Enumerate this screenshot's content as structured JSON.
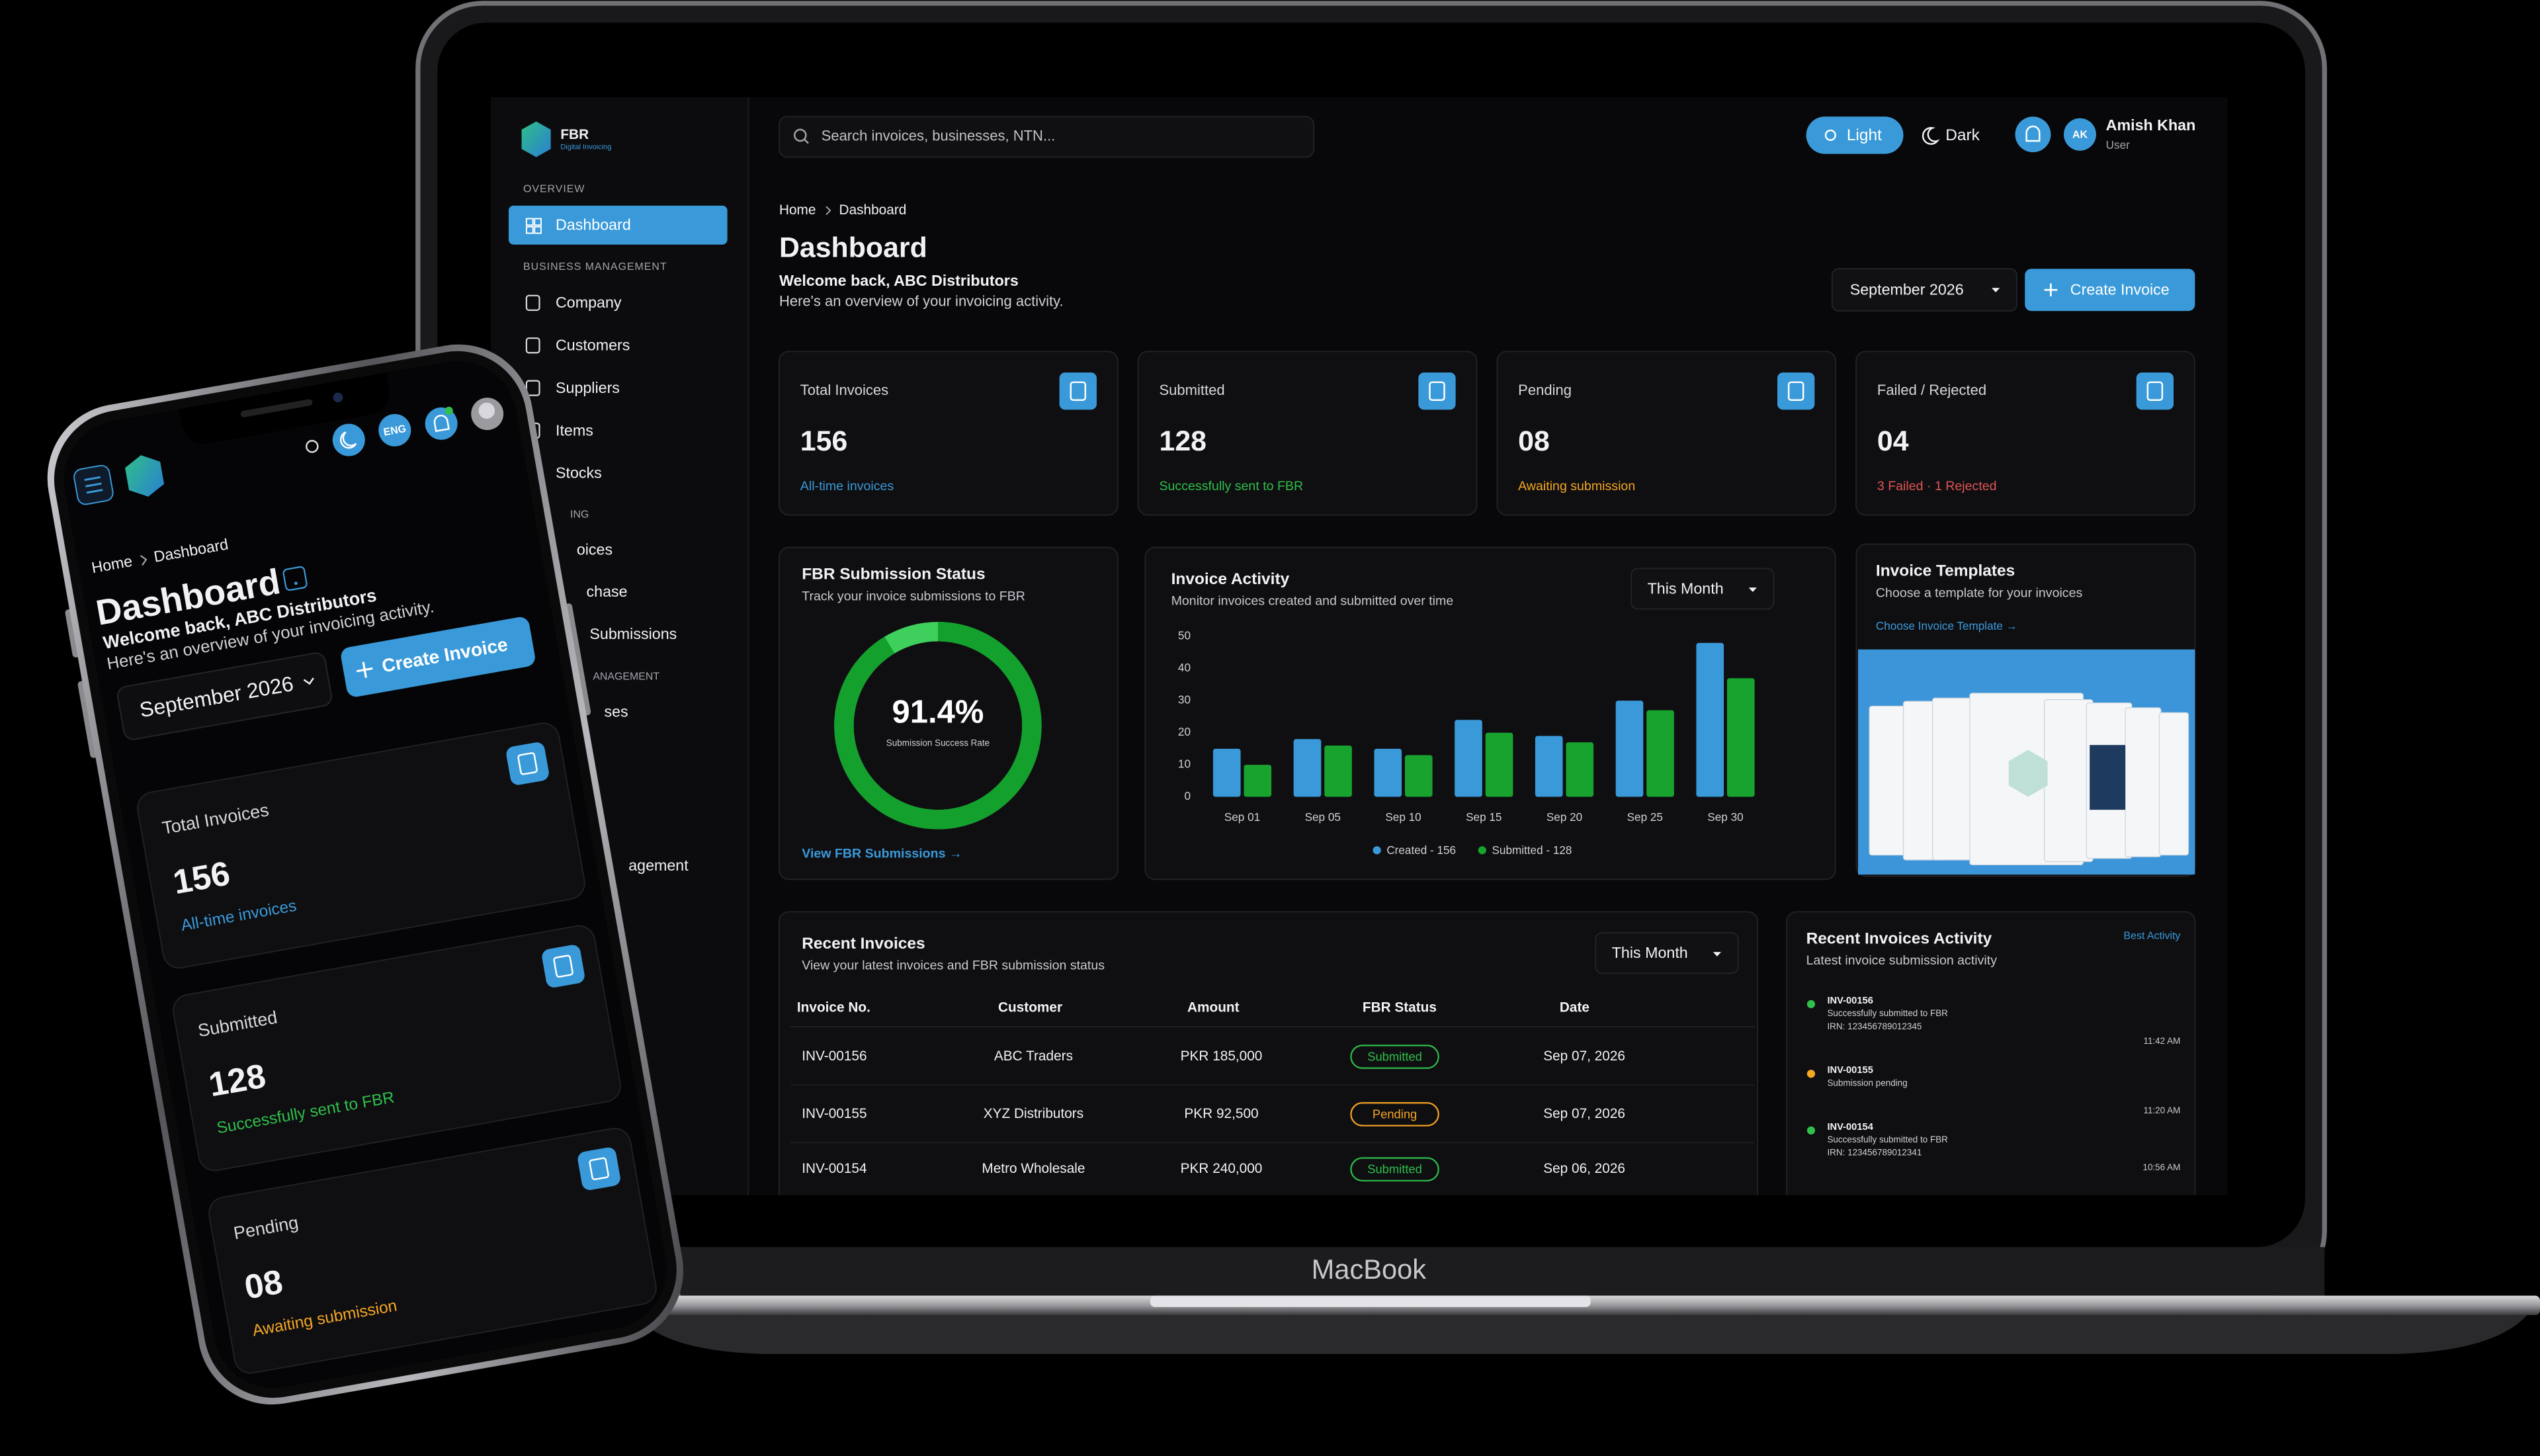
{
  "device_label": "MacBook",
  "sidebar": {
    "brand": "FBR",
    "tagline": "Digital Invoicing",
    "overview_heading": "OVERVIEW",
    "active_item": "Dashboard",
    "business_heading": "BUSINESS MANAGEMENT",
    "business_items": [
      "Company",
      "Customers",
      "Suppliers",
      "Items",
      "Stocks"
    ],
    "partial_texts": [
      "ING",
      "oices",
      "chase",
      "Submissions",
      "ANAGEMENT",
      "ses",
      "agement"
    ]
  },
  "topbar": {
    "search_placeholder": "Search invoices, businesses, NTN...",
    "light": "Light",
    "dark": "Dark",
    "avatar_initials": "AK",
    "user_name": "Amish Khan",
    "user_role": "User"
  },
  "header": {
    "breadcrumb": [
      "Home",
      "Dashboard"
    ],
    "title": "Dashboard",
    "welcome": "Welcome back, ABC Distributors",
    "subtitle": "Here's an overview of your invoicing activity.",
    "period": "September 2026",
    "create_button": "Create Invoice"
  },
  "stats": [
    {
      "label": "Total Invoices",
      "value": "156",
      "note": "All-time invoices",
      "color": "#3a9ad9"
    },
    {
      "label": "Submitted",
      "value": "128",
      "note": "Successfully sent to FBR",
      "color": "#2fbf4a"
    },
    {
      "label": "Pending",
      "value": "08",
      "note": "Awaiting submission",
      "color": "#f5a623"
    },
    {
      "label": "Failed / Rejected",
      "value": "04",
      "note": "3 Failed · 1 Rejected",
      "color": "#e05555"
    }
  ],
  "chart_data": [
    {
      "type": "donut",
      "title": "FBR Submission Status",
      "subtitle": "Track your invoice submissions to FBR",
      "values": [
        91.4
      ],
      "value_labels": [
        "91.4%"
      ],
      "caption": "Submission Success Rate",
      "link": "View FBR Submissions →",
      "colors": [
        "#14a02d",
        "#3fcf5c"
      ]
    },
    {
      "type": "bar",
      "title": "Invoice Activity",
      "subtitle": "Monitor invoices created and submitted over time",
      "filter": "This Month",
      "categories": [
        "Sep 01",
        "Sep 05",
        "Sep 10",
        "Sep 15",
        "Sep 20",
        "Sep 25",
        "Sep 30"
      ],
      "series": [
        {
          "name": "Created - 156",
          "color": "#3a9ad9",
          "values": [
            15,
            18,
            15,
            24,
            19,
            30,
            48
          ]
        },
        {
          "name": "Submitted - 128",
          "color": "#17a32e",
          "values": [
            10,
            16,
            13,
            20,
            17,
            27,
            37
          ]
        }
      ],
      "ylim": [
        0,
        50
      ],
      "yticks": [
        0,
        10,
        20,
        30,
        40,
        50
      ]
    }
  ],
  "templates": {
    "title": "Invoice Templates",
    "subtitle": "Choose a template for your invoices",
    "link": "Choose Invoice Template →"
  },
  "recent_invoices": {
    "title": "Recent Invoices",
    "subtitle": "View your latest invoices and FBR submission status",
    "filter": "This Month",
    "columns": [
      "Invoice No.",
      "Customer",
      "Amount",
      "FBR Status",
      "Date"
    ],
    "rows": [
      [
        "INV-00156",
        "ABC Traders",
        "PKR 185,000",
        "Submitted",
        "Sep 07, 2026"
      ],
      [
        "INV-00155",
        "XYZ Distributors",
        "PKR 92,500",
        "Pending",
        "Sep 07, 2026"
      ],
      [
        "INV-00154",
        "Metro Wholesale",
        "PKR 240,000",
        "Submitted",
        "Sep 06, 2026"
      ]
    ],
    "status_colors": {
      "Submitted": "#2fbf4a",
      "Pending": "#f5a623"
    }
  },
  "activity": {
    "title": "Recent Invoices Activity",
    "subtitle": "Latest invoice submission activity",
    "link": "Best Activity",
    "items": [
      {
        "invoice": "INV-00156",
        "lines": [
          "Successfully submitted to FBR",
          "IRN: 123456789012345"
        ],
        "time": "11:42 AM",
        "color": "#2fbf4a"
      },
      {
        "invoice": "INV-00155",
        "lines": [
          "Submission pending"
        ],
        "time": "11:20 AM",
        "color": "#f5a623"
      },
      {
        "invoice": "INV-00154",
        "lines": [
          "Successfully submitted to FBR",
          "IRN: 123456789012341"
        ],
        "time": "10:56 AM",
        "color": "#2fbf4a"
      }
    ]
  },
  "phone": {
    "language": "ENG",
    "breadcrumb": [
      "Home",
      "Dashboard"
    ],
    "title": "Dashboard",
    "welcome": "Welcome back, ABC Distributors",
    "subtitle": "Here's an overview of your invoicing activity.",
    "period": "September 2026",
    "create_button": "Create Invoice",
    "stats": [
      {
        "label": "Total Invoices",
        "value": "156",
        "note": "All-time invoices",
        "color": "#3a9ad9"
      },
      {
        "label": "Submitted",
        "value": "128",
        "note": "Successfully sent to FBR",
        "color": "#2fbf4a"
      },
      {
        "label": "Pending",
        "value": "08",
        "note": "Awaiting submission",
        "color": "#f5a623"
      }
    ]
  }
}
